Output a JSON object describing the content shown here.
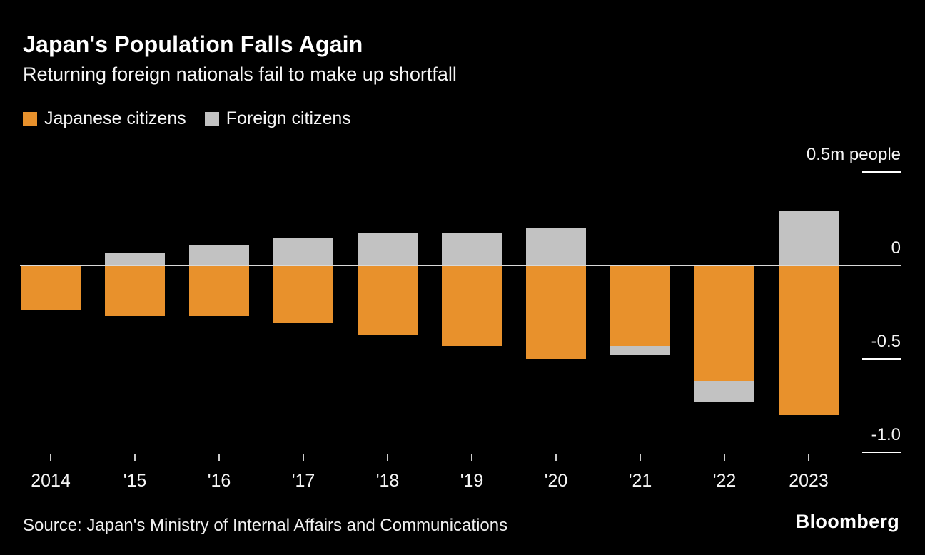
{
  "header": {
    "title": "Japan's Population Falls Again",
    "subtitle": "Returning foreign nationals fail to make up shortfall"
  },
  "legend": [
    {
      "label": "Japanese citizens",
      "color": "#E8912C"
    },
    {
      "label": "Foreign citizens",
      "color": "#C2C2C2"
    }
  ],
  "chart_data": {
    "type": "bar",
    "stacked": true,
    "title": "Japan's Population Falls Again",
    "subtitle": "Returning foreign nationals fail to make up shortfall",
    "unit": "m people",
    "categories": [
      "2014",
      "'15",
      "'16",
      "'17",
      "'18",
      "'19",
      "'20",
      "'21",
      "'22",
      "2023"
    ],
    "series": [
      {
        "name": "Japanese citizens",
        "color": "#E8912C",
        "values": [
          -0.24,
          -0.27,
          -0.27,
          -0.31,
          -0.37,
          -0.43,
          -0.5,
          -0.43,
          -0.62,
          -0.8
        ]
      },
      {
        "name": "Foreign citizens",
        "color": "#C2C2C2",
        "values": [
          0,
          0.07,
          0.11,
          0.15,
          0.17,
          0.17,
          0.2,
          -0.05,
          -0.11,
          0.29
        ]
      }
    ],
    "y_axis": {
      "ticks": [
        {
          "label": "0.5m people",
          "value": 0.5
        },
        {
          "label": "0",
          "value": 0
        },
        {
          "label": "-0.5",
          "value": -0.5
        },
        {
          "label": "-1.0",
          "value": -1.0
        }
      ],
      "range": [
        -1.15,
        0.62
      ]
    },
    "grid": "zero-line-full-width-others-right-ticks",
    "legend_position": "top-left"
  },
  "footer": {
    "source": "Source: Japan's Ministry of Internal Affairs and Communications",
    "brand": "Bloomberg"
  }
}
